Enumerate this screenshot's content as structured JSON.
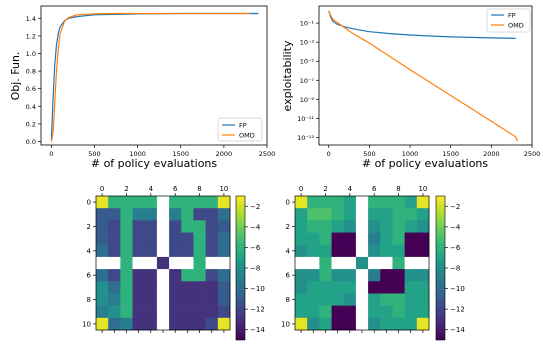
{
  "chart_data": [
    {
      "type": "line",
      "xlabel": "# of policy evaluations",
      "ylabel": "Obj. Fun.",
      "xlim": [
        -120,
        2500
      ],
      "ylim": [
        -0.04,
        1.54
      ],
      "x_ticks": [
        "0",
        "500",
        "1000",
        "1500",
        "2000",
        "2500"
      ],
      "y_ticks": [
        "0.0",
        "0.2",
        "0.4",
        "0.6",
        "0.8",
        "1.0",
        "1.2",
        "1.4"
      ],
      "legend": "lower-right",
      "series": [
        {
          "name": "FP",
          "color": "#1f77b4",
          "x": [
            0,
            20,
            40,
            60,
            80,
            100,
            150,
            200,
            300,
            400,
            500,
            750,
            1000,
            1500,
            2000,
            2400
          ],
          "y": [
            0.02,
            0.5,
            0.88,
            1.1,
            1.23,
            1.3,
            1.37,
            1.4,
            1.42,
            1.43,
            1.44,
            1.445,
            1.45,
            1.455,
            1.455,
            1.455
          ]
        },
        {
          "name": "OMD",
          "color": "#ff7f0e",
          "x": [
            0,
            20,
            40,
            60,
            80,
            100,
            150,
            200,
            300,
            500,
            750,
            1000,
            1500,
            2000,
            2300
          ],
          "y": [
            0.0,
            0.1,
            0.45,
            0.8,
            1.06,
            1.22,
            1.36,
            1.41,
            1.44,
            1.45,
            1.455,
            1.455,
            1.455,
            1.455,
            1.455
          ]
        }
      ]
    },
    {
      "type": "line",
      "xlabel": "# of policy evaluations",
      "ylabel": "exploitability",
      "yscale": "log",
      "xlim": [
        -120,
        2500
      ],
      "ylim_log10": [
        -13.8,
        0.8
      ],
      "x_ticks": [
        "0",
        "500",
        "1000",
        "1500",
        "2000",
        "2500"
      ],
      "y_ticks": [
        {
          "label": "10⁻¹",
          "value": -1
        },
        {
          "label": "10⁻³",
          "value": -3
        },
        {
          "label": "10⁻⁵",
          "value": -5
        },
        {
          "label": "10⁻⁷",
          "value": -7
        },
        {
          "label": "10⁻⁹",
          "value": -9
        },
        {
          "label": "10⁻¹¹",
          "value": -11
        },
        {
          "label": "10⁻¹³",
          "value": -13
        }
      ],
      "legend": "top-right",
      "series": [
        {
          "name": "FP",
          "color": "#1f77b4",
          "x": [
            0,
            25,
            50,
            100,
            200,
            300,
            500,
            750,
            1000,
            1250,
            1500,
            1750,
            2000,
            2300
          ],
          "log10_y": [
            0.3,
            -0.4,
            -0.8,
            -1.1,
            -1.4,
            -1.6,
            -1.9,
            -2.1,
            -2.25,
            -2.35,
            -2.45,
            -2.5,
            -2.55,
            -2.6
          ]
        },
        {
          "name": "OMD",
          "color": "#ff7f0e",
          "x": [
            0,
            25,
            50,
            100,
            300,
            500,
            1000,
            1500,
            2000,
            2300,
            2320
          ],
          "log10_y": [
            0.3,
            -0.2,
            -0.6,
            -0.9,
            -2.1,
            -3.1,
            -5.9,
            -8.6,
            -11.3,
            -12.95,
            -13.4
          ]
        }
      ]
    },
    {
      "type": "heatmap",
      "x_ticks": [
        "0",
        "2",
        "4",
        "6",
        "8",
        "10"
      ],
      "y_ticks": [
        "0",
        "2",
        "4",
        "6",
        "8",
        "10"
      ],
      "colorbar_ticks": [
        "−2",
        "−4",
        "−6",
        "−8",
        "−10",
        "−12",
        "−14"
      ],
      "vrange": [
        -15,
        -1
      ],
      "walls": [
        [
          0,
          5
        ],
        [
          1,
          5
        ],
        [
          2,
          5
        ],
        [
          3,
          5
        ],
        [
          5,
          0
        ],
        [
          5,
          1
        ],
        [
          5,
          3
        ],
        [
          5,
          4
        ],
        [
          5,
          6
        ],
        [
          5,
          7
        ],
        [
          5,
          9
        ],
        [
          5,
          10
        ],
        [
          7,
          5
        ],
        [
          8,
          5
        ],
        [
          9,
          5
        ],
        [
          10,
          5
        ]
      ],
      "cells": [
        [
          -1.5,
          -6,
          -6,
          -6,
          -6,
          null,
          -6,
          -6,
          -6,
          -6,
          -1.5
        ],
        [
          -11,
          -11,
          -6,
          -9,
          -9,
          null,
          -9,
          -6,
          -12,
          -12,
          -10
        ],
        [
          -11,
          -12,
          -6,
          -12,
          -12,
          null,
          -12,
          -6,
          -6,
          -12,
          -11
        ],
        [
          -11,
          -12,
          -6,
          -12,
          -12,
          null,
          -12,
          -12,
          -6,
          -12,
          -10
        ],
        [
          -10,
          -12,
          -6,
          -12,
          -12,
          null,
          -12,
          -12,
          -6,
          -12,
          -10
        ],
        [
          null,
          null,
          -6,
          null,
          null,
          -13,
          null,
          null,
          -6,
          null,
          null
        ],
        [
          -10,
          -12,
          -6,
          -13,
          -13,
          null,
          -13,
          -6,
          -6,
          -12,
          -10
        ],
        [
          -8,
          -10,
          -6,
          -13,
          -13,
          null,
          -13,
          -13,
          -13,
          -13,
          -11
        ],
        [
          -8,
          -9,
          -6,
          -13,
          -13,
          null,
          -13,
          -13,
          -13,
          -13,
          -11
        ],
        [
          -9,
          -8,
          -6,
          -13,
          -13,
          null,
          -13,
          -13,
          -13,
          -13,
          -12
        ],
        [
          -1.5,
          -10,
          -9,
          -13,
          -13,
          null,
          -13,
          -13,
          -13,
          -12,
          -1.5
        ]
      ]
    },
    {
      "type": "heatmap",
      "x_ticks": [
        "0",
        "2",
        "4",
        "6",
        "8",
        "10"
      ],
      "y_ticks": [
        "0",
        "2",
        "4",
        "6",
        "8",
        "10"
      ],
      "colorbar_ticks": [
        "−2",
        "−4",
        "−6",
        "−8",
        "−10",
        "−12",
        "−14"
      ],
      "vrange": [
        -15,
        -1
      ],
      "walls": [
        [
          0,
          5
        ],
        [
          1,
          5
        ],
        [
          2,
          5
        ],
        [
          3,
          5
        ],
        [
          5,
          0
        ],
        [
          5,
          1
        ],
        [
          5,
          3
        ],
        [
          5,
          4
        ],
        [
          5,
          6
        ],
        [
          5,
          7
        ],
        [
          5,
          9
        ],
        [
          5,
          10
        ],
        [
          7,
          5
        ],
        [
          8,
          5
        ],
        [
          9,
          5
        ],
        [
          10,
          5
        ]
      ],
      "cells": [
        [
          -1.5,
          -6,
          -6,
          -6,
          -7,
          null,
          -6,
          -6,
          -6,
          -7,
          -1.5
        ],
        [
          -7,
          -5,
          -5,
          -6,
          -7,
          null,
          -7,
          -7,
          -6,
          -6,
          -7
        ],
        [
          -7,
          -6,
          -6,
          -7,
          -8,
          null,
          -8,
          -7,
          -6,
          -7,
          -8
        ],
        [
          -7,
          -7,
          -6,
          -15,
          -15,
          null,
          -9,
          -7,
          -6,
          -15,
          -15
        ],
        [
          -8,
          -7,
          -7,
          -15,
          -15,
          null,
          -8,
          -7,
          -7,
          -15,
          -15
        ],
        [
          null,
          null,
          -6,
          null,
          null,
          -8,
          null,
          null,
          -6,
          null,
          null
        ],
        [
          -8,
          -8,
          -6,
          -8,
          -8,
          null,
          -9,
          -15,
          -15,
          -8,
          -8
        ],
        [
          -8,
          -7,
          -7,
          -7,
          -7,
          null,
          -15,
          -15,
          -15,
          -7,
          -7
        ],
        [
          -7,
          -7,
          -7,
          -7,
          -8,
          null,
          -7,
          -6,
          -6,
          -7,
          -7
        ],
        [
          -7,
          -7,
          -6,
          -15,
          -15,
          null,
          -7,
          -7,
          -6,
          -7,
          -7
        ],
        [
          -1.5,
          -8,
          -7,
          -15,
          -15,
          null,
          -8,
          -7,
          -7,
          -7,
          -1.5
        ]
      ]
    }
  ]
}
